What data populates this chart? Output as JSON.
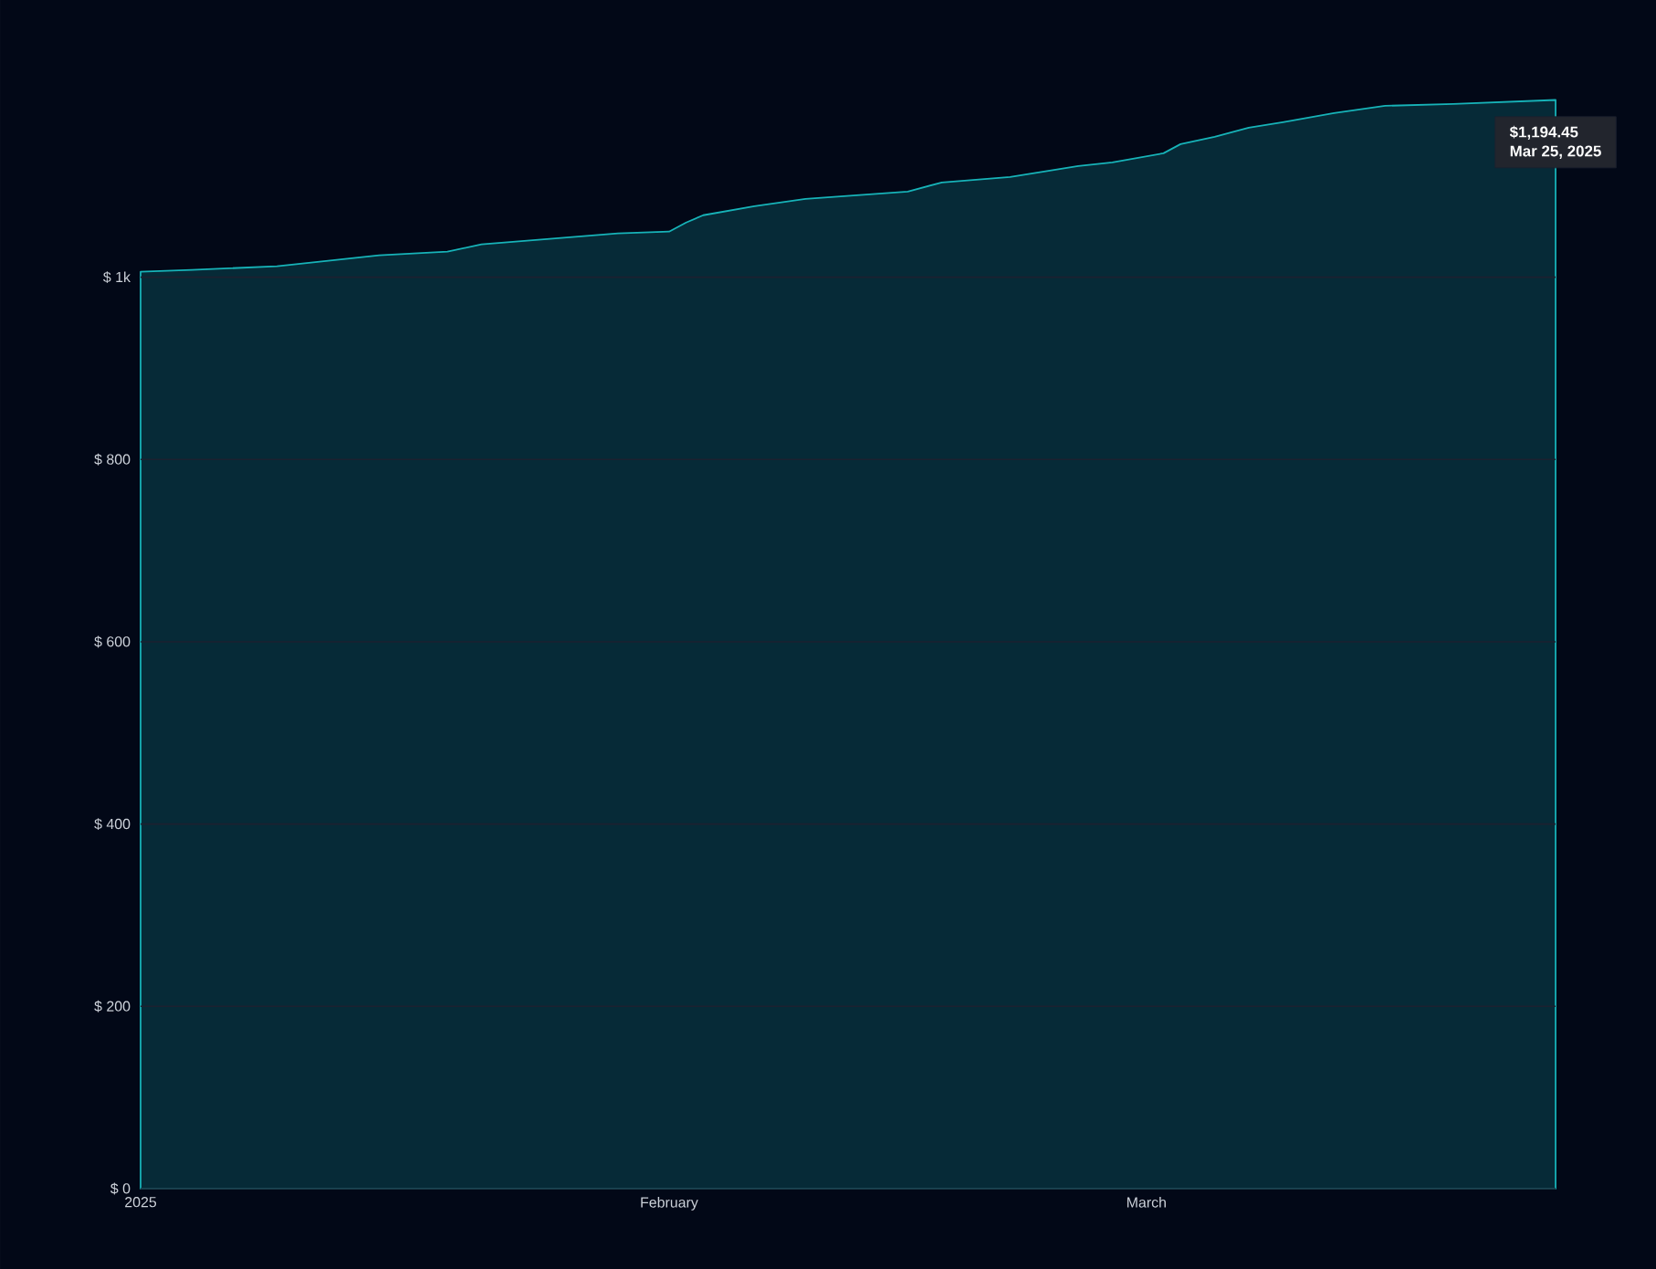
{
  "chart_data": {
    "type": "area",
    "x": [
      "2025-01-01",
      "2025-01-04",
      "2025-01-09",
      "2025-01-12",
      "2025-01-14",
      "2025-01-15",
      "2025-01-19",
      "2025-01-21",
      "2025-01-25",
      "2025-01-29",
      "2025-02-01",
      "2025-02-02",
      "2025-02-03",
      "2025-02-06",
      "2025-02-09",
      "2025-02-15",
      "2025-02-17",
      "2025-02-21",
      "2025-02-25",
      "2025-02-27",
      "2025-03-02",
      "2025-03-03",
      "2025-03-05",
      "2025-03-07",
      "2025-03-09",
      "2025-03-12",
      "2025-03-15",
      "2025-03-19",
      "2025-03-25"
    ],
    "series": [
      {
        "color": "#17b3b8",
        "values": [
          1006,
          1008,
          1012,
          1018,
          1022,
          1024,
          1028,
          1036,
          1042,
          1048,
          1050,
          1060,
          1068,
          1078,
          1086,
          1094,
          1104,
          1110,
          1122,
          1126,
          1136,
          1146,
          1154,
          1164,
          1170,
          1180,
          1188,
          1190,
          1194.45
        ]
      }
    ],
    "xlim": [
      "2025-01-01",
      "2025-03-25"
    ],
    "xticks": [
      {
        "value": "2025-01-01",
        "label": "2025"
      },
      {
        "value": "2025-02-01",
        "label": "February"
      },
      {
        "value": "2025-03-01",
        "label": "March"
      }
    ],
    "ylim": [
      0,
      1200
    ],
    "yticks": [
      {
        "value": 0,
        "label": "$ 0"
      },
      {
        "value": 200,
        "label": "$ 200"
      },
      {
        "value": 400,
        "label": "$ 400"
      },
      {
        "value": 600,
        "label": "$ 600"
      },
      {
        "value": 800,
        "label": "$ 800"
      },
      {
        "value": 1000,
        "label": "$ 1k"
      }
    ],
    "grid": "y",
    "annotations": [
      {
        "text": "$1,194.45",
        "x": "2025-03-25",
        "y": 1194.45
      },
      "Mar 25, 2025"
    ]
  }
}
